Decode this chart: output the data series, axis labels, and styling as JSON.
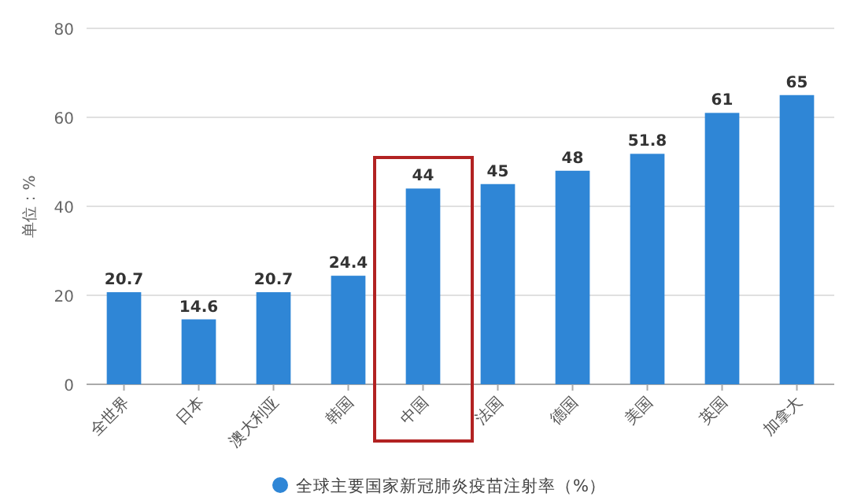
{
  "chart_data": {
    "type": "bar",
    "ylabel": "单位：%",
    "categories": [
      "全世界",
      "日本",
      "澳大利亚",
      "韩国",
      "中国",
      "法国",
      "德国",
      "美国",
      "英国",
      "加拿大"
    ],
    "series": [
      {
        "name": "全球主要国家新冠肺炎疫苗注射率（%）",
        "color": "#2f86d6",
        "values": [
          20.7,
          14.6,
          20.7,
          24.4,
          44,
          45,
          48,
          51.8,
          61,
          65
        ]
      }
    ],
    "ylim": [
      0,
      80
    ],
    "yticks": [
      0,
      20,
      40,
      60,
      80
    ],
    "grid": "y",
    "legend": "bottom",
    "data_labels": true
  }
}
